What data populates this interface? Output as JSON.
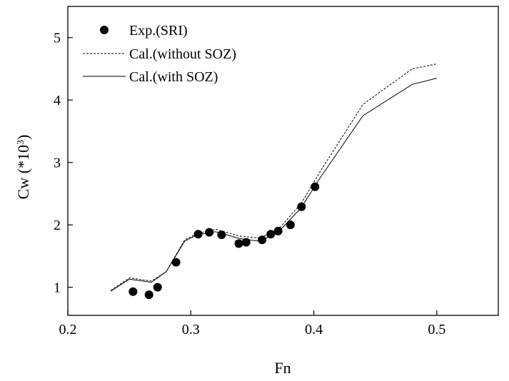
{
  "chart_data": {
    "type": "line",
    "title": "",
    "xlabel": "Fn",
    "ylabel": {
      "main": "Cw (*10",
      "sup": "3",
      "close": ")"
    },
    "xlim": [
      0.2,
      0.55
    ],
    "ylim": [
      0.55,
      5.5
    ],
    "xticks": [
      {
        "value": 0.2,
        "label": "0.2"
      },
      {
        "value": 0.3,
        "label": "0.3"
      },
      {
        "value": 0.4,
        "label": "0.4"
      },
      {
        "value": 0.5,
        "label": "0.5"
      }
    ],
    "yticks": [
      {
        "value": 1,
        "label": "1"
      },
      {
        "value": 2,
        "label": "2"
      },
      {
        "value": 3,
        "label": "3"
      },
      {
        "value": 4,
        "label": "4"
      },
      {
        "value": 5,
        "label": "5"
      }
    ],
    "grid": false,
    "legend_position": "top-left",
    "series": [
      {
        "name": "Exp.(SRI)",
        "style": "markers",
        "color": "#000000",
        "points": [
          {
            "x": 0.253,
            "y": 0.93
          },
          {
            "x": 0.266,
            "y": 0.88
          },
          {
            "x": 0.273,
            "y": 1.0
          },
          {
            "x": 0.288,
            "y": 1.4
          },
          {
            "x": 0.306,
            "y": 1.85
          },
          {
            "x": 0.315,
            "y": 1.88
          },
          {
            "x": 0.325,
            "y": 1.84
          },
          {
            "x": 0.339,
            "y": 1.7
          },
          {
            "x": 0.345,
            "y": 1.72
          },
          {
            "x": 0.358,
            "y": 1.76
          },
          {
            "x": 0.365,
            "y": 1.85
          },
          {
            "x": 0.371,
            "y": 1.9
          },
          {
            "x": 0.381,
            "y": 2.0
          },
          {
            "x": 0.39,
            "y": 2.29
          },
          {
            "x": 0.401,
            "y": 2.61
          }
        ]
      },
      {
        "name": "Cal.(without SOZ)",
        "style": "dashed",
        "color": "#000000",
        "points": [
          {
            "x": 0.235,
            "y": 0.95
          },
          {
            "x": 0.25,
            "y": 1.15
          },
          {
            "x": 0.268,
            "y": 1.1
          },
          {
            "x": 0.28,
            "y": 1.25
          },
          {
            "x": 0.295,
            "y": 1.76
          },
          {
            "x": 0.305,
            "y": 1.86
          },
          {
            "x": 0.32,
            "y": 1.93
          },
          {
            "x": 0.34,
            "y": 1.82
          },
          {
            "x": 0.355,
            "y": 1.79
          },
          {
            "x": 0.37,
            "y": 1.9
          },
          {
            "x": 0.39,
            "y": 2.35
          },
          {
            "x": 0.405,
            "y": 2.85
          },
          {
            "x": 0.44,
            "y": 3.93
          },
          {
            "x": 0.48,
            "y": 4.5
          },
          {
            "x": 0.5,
            "y": 4.58
          }
        ]
      },
      {
        "name": "Cal.(with SOZ)",
        "style": "solid",
        "color": "#000000",
        "points": [
          {
            "x": 0.235,
            "y": 0.94
          },
          {
            "x": 0.25,
            "y": 1.13
          },
          {
            "x": 0.268,
            "y": 1.08
          },
          {
            "x": 0.28,
            "y": 1.25
          },
          {
            "x": 0.295,
            "y": 1.74
          },
          {
            "x": 0.305,
            "y": 1.84
          },
          {
            "x": 0.32,
            "y": 1.89
          },
          {
            "x": 0.34,
            "y": 1.78
          },
          {
            "x": 0.355,
            "y": 1.74
          },
          {
            "x": 0.37,
            "y": 1.86
          },
          {
            "x": 0.39,
            "y": 2.28
          },
          {
            "x": 0.405,
            "y": 2.75
          },
          {
            "x": 0.44,
            "y": 3.75
          },
          {
            "x": 0.48,
            "y": 4.25
          },
          {
            "x": 0.5,
            "y": 4.35
          }
        ]
      }
    ]
  }
}
